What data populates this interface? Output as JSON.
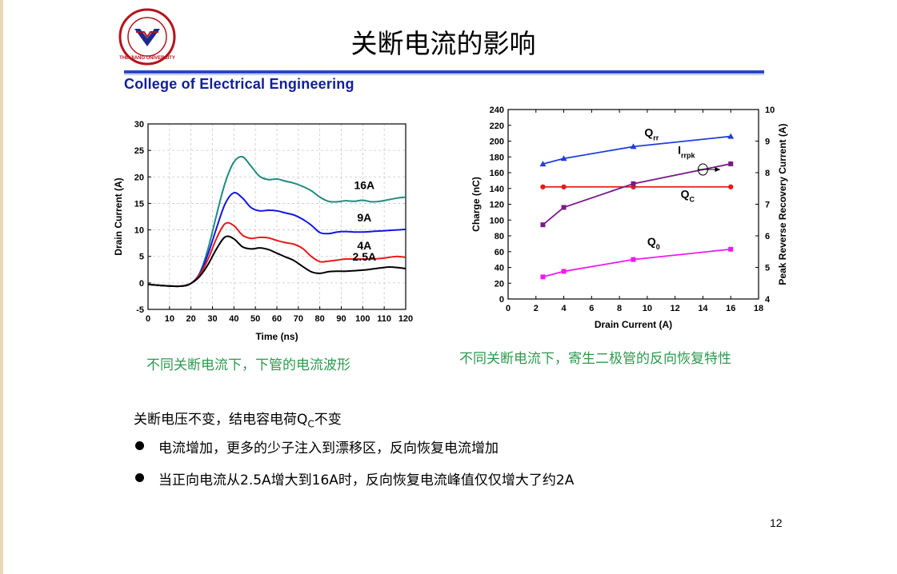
{
  "slide": {
    "title": "关断电流的影响",
    "college": "College of Electrical Engineering",
    "logo_icon": "zhejiang-university-seal-icon",
    "logo_text": "THE JIANG UNIVERSITY",
    "page_number": "12",
    "accent_color": "#2a44c6",
    "caption_color": "#2c9a4e"
  },
  "captions": {
    "left": "不同关断电流下，下管的电流波形",
    "right": "不同关断电流下，寄生二极管的反向恢复特性"
  },
  "notes": {
    "intro_main": "关断电压不变，结电容电荷Q",
    "intro_sub": "C",
    "intro_tail": "不变",
    "bullets": [
      "电流增加，更多的少子注入到漂移区，反向恢复电流增加",
      "当正向电流从2.5A增大到16A时，反向恢复电流峰值仅仅增大了约2A"
    ]
  },
  "chart_data": [
    {
      "type": "line",
      "title": "",
      "xlabel": "Time (ns)",
      "ylabel": "Drain Current (A)",
      "xlim": [
        0,
        120
      ],
      "ylim": [
        -5,
        30
      ],
      "xticks": [
        "0",
        "10",
        "20",
        "30",
        "40",
        "50",
        "60",
        "70",
        "80",
        "90",
        "100",
        "110",
        "120"
      ],
      "yticks": [
        "-5",
        "0",
        "5",
        "10",
        "15",
        "20",
        "25",
        "30"
      ],
      "grid": true,
      "series": [
        {
          "name": "16A",
          "color": "#1e8c80",
          "x": [
            0,
            10,
            16,
            20,
            24,
            28,
            32,
            36,
            40,
            44,
            48,
            52,
            56,
            60,
            64,
            68,
            72,
            76,
            80,
            84,
            88,
            92,
            96,
            100,
            104,
            108,
            112,
            116,
            120
          ],
          "y": [
            -0.3,
            -0.6,
            -0.6,
            -0.1,
            1.8,
            6.5,
            13.0,
            19.0,
            22.8,
            23.8,
            22.0,
            20.1,
            19.5,
            19.6,
            19.2,
            18.8,
            18.2,
            17.4,
            16.2,
            15.4,
            15.3,
            15.5,
            15.4,
            15.6,
            15.3,
            15.4,
            15.7,
            16.0,
            16.2
          ]
        },
        {
          "name": "9A",
          "color": "#1515e6",
          "x": [
            0,
            10,
            16,
            20,
            24,
            28,
            32,
            36,
            40,
            44,
            48,
            52,
            56,
            60,
            64,
            68,
            72,
            76,
            80,
            84,
            88,
            92,
            96,
            100,
            104,
            108,
            112,
            116,
            120
          ],
          "y": [
            -0.3,
            -0.6,
            -0.6,
            -0.1,
            1.7,
            5.5,
            10.5,
            15.0,
            17.0,
            16.0,
            14.2,
            13.6,
            13.7,
            13.6,
            13.2,
            12.8,
            12.0,
            10.9,
            9.5,
            9.3,
            9.6,
            9.7,
            9.6,
            9.6,
            9.7,
            9.8,
            9.9,
            10.0,
            10.1
          ]
        },
        {
          "name": "4A",
          "color": "#e61a1a",
          "x": [
            0,
            10,
            16,
            20,
            24,
            28,
            32,
            36,
            40,
            44,
            48,
            52,
            56,
            60,
            64,
            68,
            72,
            76,
            80,
            84,
            88,
            92,
            96,
            100,
            104,
            108,
            112,
            116,
            120
          ],
          "y": [
            -0.3,
            -0.6,
            -0.6,
            -0.1,
            1.5,
            4.5,
            8.5,
            11.2,
            10.8,
            9.0,
            8.4,
            8.6,
            8.5,
            8.0,
            7.6,
            7.3,
            6.5,
            5.0,
            4.0,
            4.1,
            4.3,
            4.5,
            4.5,
            4.5,
            4.5,
            4.6,
            4.8,
            5.0,
            4.8
          ]
        },
        {
          "name": "2.5A",
          "color": "#000000",
          "x": [
            0,
            10,
            16,
            20,
            24,
            28,
            32,
            36,
            40,
            44,
            48,
            52,
            56,
            60,
            64,
            68,
            72,
            76,
            80,
            84,
            88,
            92,
            96,
            100,
            104,
            108,
            112,
            116,
            120
          ],
          "y": [
            -0.3,
            -0.6,
            -0.6,
            -0.1,
            1.2,
            3.5,
            6.5,
            8.7,
            8.3,
            6.8,
            6.4,
            6.6,
            6.3,
            5.6,
            4.9,
            4.2,
            3.1,
            2.1,
            1.8,
            2.1,
            2.2,
            2.2,
            2.3,
            2.4,
            2.6,
            2.8,
            3.0,
            2.9,
            2.7
          ]
        }
      ]
    },
    {
      "type": "line",
      "title": "",
      "xlabel": "Drain Current (A)",
      "ylabel": "Charge (nC)",
      "ylabel_right": "Peak Reverse Recovery Current (A)",
      "xlim": [
        0,
        18
      ],
      "ylim": [
        0,
        240
      ],
      "ylim_right": [
        4,
        10
      ],
      "xticks": [
        "0",
        "2",
        "4",
        "6",
        "8",
        "10",
        "12",
        "14",
        "16",
        "18"
      ],
      "yticks": [
        "0",
        "20",
        "40",
        "60",
        "80",
        "100",
        "120",
        "140",
        "160",
        "180",
        "200",
        "220",
        "240"
      ],
      "yticks_right": [
        "4",
        "5",
        "6",
        "7",
        "8",
        "9",
        "10"
      ],
      "grid": false,
      "series": [
        {
          "name": "Qrr",
          "label_main": "Q",
          "label_sub": "rr",
          "color": "#1f3fd8",
          "marker": "triangle",
          "axis": "left",
          "x": [
            2.5,
            4,
            9,
            16
          ],
          "y": [
            171,
            178,
            193,
            206
          ]
        },
        {
          "name": "Qc",
          "label_main": "Q",
          "label_sub": "C",
          "color": "#e61a1a",
          "marker": "circle",
          "axis": "left",
          "x": [
            2.5,
            4,
            9,
            16
          ],
          "y": [
            142,
            142,
            142,
            142
          ]
        },
        {
          "name": "Q0",
          "label_main": "Q",
          "label_sub": "0",
          "color": "#ee1aee",
          "marker": "square",
          "axis": "left",
          "x": [
            2.5,
            4,
            9,
            16
          ],
          "y": [
            28,
            35,
            50,
            63
          ]
        },
        {
          "name": "Irrpk",
          "label_main": "I",
          "label_sub": "rrpk",
          "color": "#7a1a8a",
          "marker": "square",
          "axis": "right",
          "x": [
            2.5,
            4,
            9,
            16
          ],
          "y": [
            6.35,
            6.9,
            7.65,
            8.28
          ]
        }
      ]
    }
  ]
}
